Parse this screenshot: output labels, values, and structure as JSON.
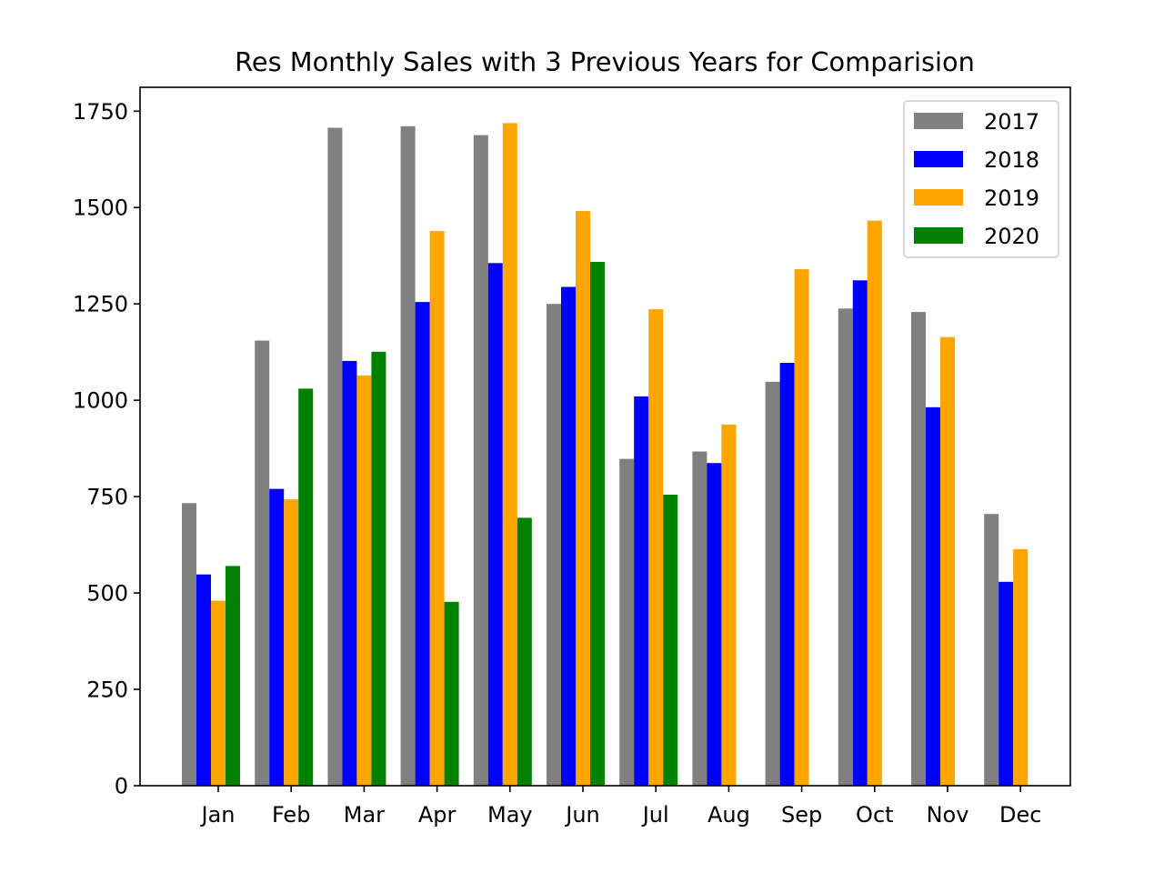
{
  "chart_data": {
    "type": "bar",
    "title": "Res Monthly Sales with 3 Previous Years for Comparision",
    "xlabel": "",
    "ylabel": "",
    "categories": [
      "Jan",
      "Feb",
      "Mar",
      "Apr",
      "May",
      "Jun",
      "Jul",
      "Aug",
      "Sep",
      "Oct",
      "Nov",
      "Dec"
    ],
    "series": [
      {
        "name": "2017",
        "color": "#808080",
        "values": [
          733,
          1155,
          1707,
          1711,
          1688,
          1250,
          848,
          867,
          1048,
          1238,
          1229,
          705
        ]
      },
      {
        "name": "2018",
        "color": "#0000ff",
        "values": [
          548,
          770,
          1102,
          1255,
          1356,
          1294,
          1010,
          837,
          1097,
          1311,
          982,
          529
        ]
      },
      {
        "name": "2019",
        "color": "#ffa500",
        "values": [
          480,
          743,
          1064,
          1439,
          1719,
          1491,
          1236,
          937,
          1340,
          1466,
          1164,
          614
        ]
      },
      {
        "name": "2020",
        "color": "#008000",
        "values": [
          570,
          1030,
          1126,
          477,
          695,
          1359,
          755,
          null,
          null,
          null,
          null,
          null
        ]
      }
    ],
    "ylim": [
      0,
      1812
    ],
    "yticks": [
      0,
      250,
      500,
      750,
      1000,
      1250,
      1500,
      1750
    ],
    "grid": false,
    "legend": "top-right"
  }
}
